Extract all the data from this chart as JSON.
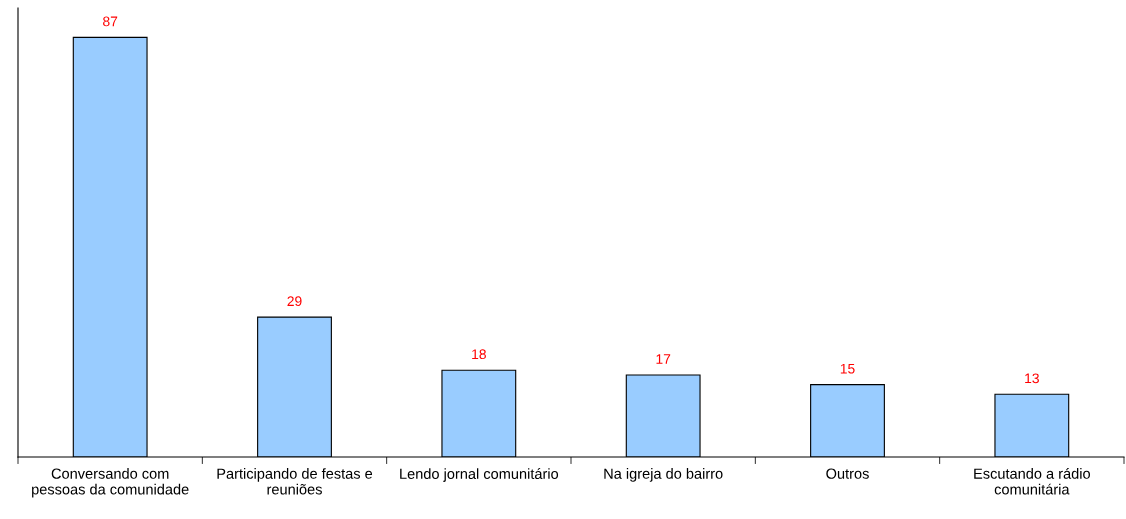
{
  "chart_data": {
    "type": "bar",
    "categories": [
      "Conversando com\npessoas da comunidade",
      "Participando de festas e\nreuniões",
      "Lendo jornal comunitário",
      "Na igreja do bairro",
      "Outros",
      "Escutando a rádio\ncomunitária"
    ],
    "values": [
      87,
      29,
      18,
      17,
      15,
      13
    ],
    "color": "#99ccff",
    "data_labels": true,
    "grid": false,
    "legend": false
  }
}
